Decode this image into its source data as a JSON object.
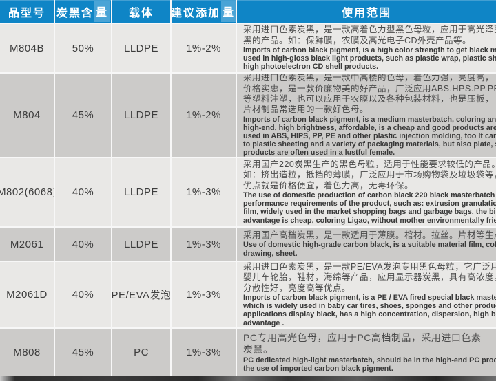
{
  "colors": {
    "header_blue": "#0f85c6",
    "header_highlight_blue": "#4aa4d6",
    "row_light": "#e9e8e6",
    "row_dark": "#cccbc9",
    "gap_white": "#f7f7f7"
  },
  "table": {
    "headers": [
      {
        "label": "品型号",
        "highlight": ""
      },
      {
        "label": "炭黑含",
        "highlight": "量"
      },
      {
        "label": "载体",
        "highlight": ""
      },
      {
        "label": "建议添加",
        "highlight": "量"
      },
      {
        "label": "使用范围",
        "highlight": ""
      }
    ],
    "rows": [
      {
        "model": "M804B",
        "carbon_black_content": "50%",
        "carrier": "LLDPE",
        "suggested_addition": "1%-2%",
        "usage_cn_lines": [
          "采用进口色素炭黑，是一款高着色力型黑色母粒，应用于高光泽亮",
          "黑的产品。如：保鲜膜，农膜及高光电子CD外壳产品等。"
        ],
        "usage_en_lines": [
          "Imports of carbon black pigment, is a high color strength to get black masterbatch,",
          "used in high-gloss black light products, such as plastic wrap, plastic sheeting and",
          "high photoelectron CD shell products."
        ]
      },
      {
        "model": "M804",
        "carbon_black_content": "45%",
        "carrier": "LLDPE",
        "suggested_addition": "1%-2%",
        "usage_cn_lines": [
          "采用进口色素炭黑，是一款中高楼的色母，着色力强，亮度高，",
          "价格实惠，是一款价廉物美的好产品，广泛应用ABS.HPS.PP.PE",
          "等塑料注塑，也可以应用于农膜以及各种包装材料，也是压板，",
          "片材制品常选用的一款好色母。"
        ],
        "usage_en_lines": [
          "Imports of carbon black pigment, is a medium masterbatch, coloring and strong",
          "high-end, high brightness, affordable, is a cheap and good products are widely",
          "used in ABS, HIPS, PP, PE and other plastic injection molding, too It can be applied",
          "to plastic sheeting and a variety of packaging materials, but also plate, sheet",
          "products are often used in a lustful female."
        ]
      },
      {
        "model": "M802(6068)",
        "carbon_black_content": "40%",
        "carrier": "LLDPE",
        "suggested_addition": "1%-3%",
        "usage_cn_lines": [
          "采用国产220炭黑生产的黑色母粒，适用于性能要求较低的产品。",
          "如：挤出造粒，抵挡的薄膜，广泛应用于市场购物袋及垃圾袋等，",
          "优点就是价格便宜，着色力高，无毒环保。"
        ],
        "usage_en_lines": [
          "The use of domestic production of carbon black 220 black masterbatch for lower",
          "performance requirements of the product, such as: extrusion granulation, resist",
          "film, widely used in the market shopping bags and garbage bags, the biggest",
          "advantage is cheap, coloring Ligao, without mother environmentally friendly."
        ]
      },
      {
        "model": "M2061",
        "carbon_black_content": "40%",
        "carrier": "LLDPE",
        "suggested_addition": "1%-3%",
        "usage_cn_lines": [
          "采用国产高档炭黑，是一款适用于薄膜。棺材。拉丝。片材等生产用。"
        ],
        "usage_en_lines": [
          "Use of domestic high-grade carbon black, is a suitable material film, coffin,",
          "drawing, sheet."
        ]
      },
      {
        "model": "M2061D",
        "carbon_black_content": "40%",
        "carrier": "PE/EVA发泡",
        "suggested_addition": "1%-3%",
        "usage_cn_lines": [
          "采用进口色素炭黑，是一款PE/EVA发泡专用黑色母粒，它广泛用于",
          "婴儿车轮胎，鞋材，海绵等产品，应用显示器炭黑，具有高浓度，",
          "分散性好，亮度高等优点。"
        ],
        "usage_en_lines": [
          "Imports of carbon black pigment, is a PE / EVA fired special black masterbatch,",
          "which is widely used in baby car tires, shoes, sponges and other products,",
          "applications display black, has a high concentration, dispersion, high brightness",
          "advantage ."
        ]
      },
      {
        "model": "M808",
        "carbon_black_content": "45%",
        "carrier": "PC",
        "suggested_addition": "1%-3%",
        "usage_cn_lines": [
          "PC专用高光色母，应用于PC高档制品，采用进口色素",
          "炭黑。"
        ],
        "usage_en_lines": [
          "PC dedicated high-light masterbatch, should be in the high-end PC products,",
          "the use of imported carbon black pigment."
        ]
      }
    ]
  }
}
